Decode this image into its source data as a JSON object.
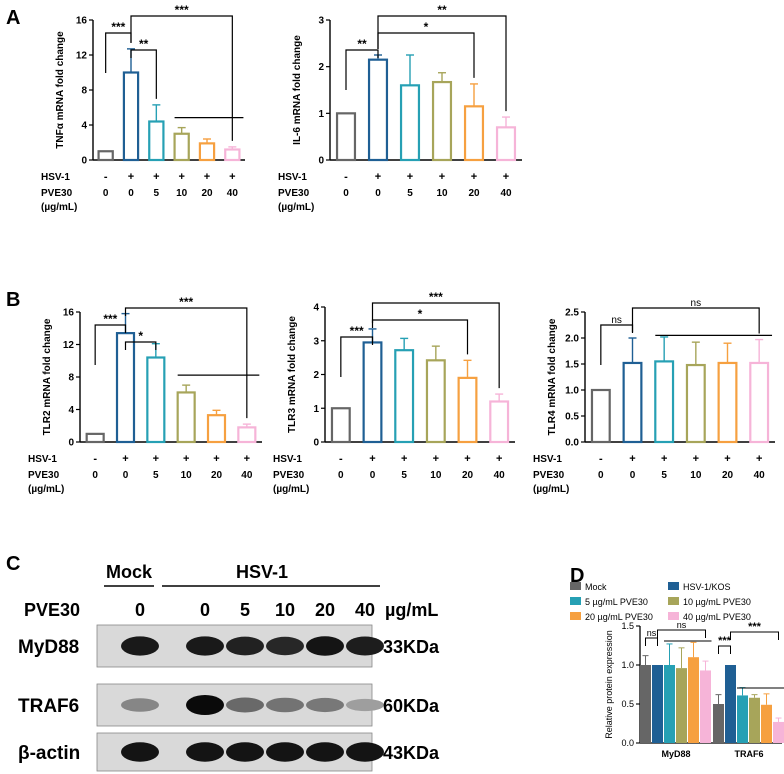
{
  "panel_labels": {
    "a": "A",
    "b": "B",
    "c": "C",
    "d": "D"
  },
  "colors": {
    "gray": "#666666",
    "blue": "#1f5f94",
    "teal": "#26a0b4",
    "olive": "#a7a55a",
    "orange": "#f6a040",
    "pink": "#f6b4d8",
    "black": "#000000"
  },
  "treatment_rows": {
    "hsv_label": "HSV-1",
    "pve_label": "PVE30",
    "unit_label": "(µg/mL)",
    "hsv_marks": [
      "-",
      "+",
      "+",
      "+",
      "+",
      "+"
    ],
    "pve_values": [
      "0",
      "0",
      "5",
      "10",
      "20",
      "40"
    ]
  },
  "chart_data": [
    {
      "id": "tnfa",
      "type": "bar",
      "ylabel": "TNFα mRNA fold change",
      "ylim": [
        0,
        16
      ],
      "yticks": [
        "0",
        "4",
        "8",
        "12",
        "16"
      ],
      "categories": [
        "-/0",
        "+/0",
        "+/5",
        "+/10",
        "+/20",
        "+/40"
      ],
      "values": [
        1.0,
        10.0,
        4.4,
        3.0,
        1.9,
        1.2
      ],
      "errors": [
        0,
        2.7,
        1.9,
        0.7,
        0.5,
        0.3
      ],
      "significance": [
        {
          "from": 0,
          "to": 1,
          "label": "***"
        },
        {
          "from": 1,
          "to": 2,
          "label": "**"
        },
        {
          "from": 1,
          "to": 5,
          "label": "***"
        }
      ]
    },
    {
      "id": "il6",
      "type": "bar",
      "ylabel": "IL-6 mRNA fold change",
      "ylim": [
        0,
        3
      ],
      "yticks": [
        "0",
        "1",
        "2",
        "3"
      ],
      "categories": [
        "-/0",
        "+/0",
        "+/5",
        "+/10",
        "+/20",
        "+/40"
      ],
      "values": [
        1.0,
        2.15,
        1.6,
        1.67,
        1.15,
        0.7
      ],
      "errors": [
        0,
        0.1,
        0.65,
        0.2,
        0.48,
        0.22
      ],
      "significance": [
        {
          "from": 0,
          "to": 1,
          "label": "**"
        },
        {
          "from": 1,
          "to": 4,
          "label": "*"
        },
        {
          "from": 1,
          "to": 5,
          "label": "**"
        }
      ]
    },
    {
      "id": "tlr2",
      "type": "bar",
      "ylabel": "TLR2 mRNA fold change",
      "ylim": [
        0,
        16
      ],
      "yticks": [
        "0",
        "4",
        "8",
        "12",
        "16"
      ],
      "categories": [
        "-/0",
        "+/0",
        "+/5",
        "+/10",
        "+/20",
        "+/40"
      ],
      "values": [
        1.0,
        13.4,
        10.4,
        6.1,
        3.3,
        1.8
      ],
      "errors": [
        0,
        2.4,
        1.7,
        0.9,
        0.6,
        0.4
      ],
      "significance": [
        {
          "from": 0,
          "to": 1,
          "label": "***"
        },
        {
          "from": 1,
          "to": 2,
          "label": "*"
        },
        {
          "from": 1,
          "to": 5,
          "label": "***"
        }
      ]
    },
    {
      "id": "tlr3",
      "type": "bar",
      "ylabel": "TLR3 mRNA fold change",
      "ylim": [
        0,
        4
      ],
      "yticks": [
        "0",
        "1",
        "2",
        "3",
        "4"
      ],
      "categories": [
        "-/0",
        "+/0",
        "+/5",
        "+/10",
        "+/20",
        "+/40"
      ],
      "values": [
        1.0,
        2.95,
        2.72,
        2.42,
        1.9,
        1.2
      ],
      "errors": [
        0,
        0.4,
        0.35,
        0.42,
        0.52,
        0.22
      ],
      "significance": [
        {
          "from": 0,
          "to": 1,
          "label": "***"
        },
        {
          "from": 1,
          "to": 4,
          "label": "*"
        },
        {
          "from": 1,
          "to": 5,
          "label": "***"
        }
      ]
    },
    {
      "id": "tlr4",
      "type": "bar",
      "ylabel": "TLR4 mRNA fold change",
      "ylim": [
        0,
        2.5
      ],
      "yticks": [
        "0.0",
        "0.5",
        "1.0",
        "1.5",
        "2.0",
        "2.5"
      ],
      "categories": [
        "-/0",
        "+/0",
        "+/5",
        "+/10",
        "+/20",
        "+/40"
      ],
      "values": [
        1.0,
        1.52,
        1.55,
        1.48,
        1.52,
        1.52
      ],
      "errors": [
        0,
        0.48,
        0.47,
        0.44,
        0.38,
        0.45
      ],
      "significance": [
        {
          "from": 0,
          "to": 1,
          "label": "ns"
        },
        {
          "from": 1,
          "to": 5,
          "label": "ns"
        }
      ]
    },
    {
      "id": "protein",
      "type": "bar",
      "ylabel": "Relative protein expression",
      "ylim": [
        0,
        1.5
      ],
      "yticks": [
        "0.0",
        "0.5",
        "1.0",
        "1.5"
      ],
      "categories": [
        "MyD88",
        "TRAF6"
      ],
      "series": [
        {
          "name": "Mock",
          "values": [
            1.0,
            0.5
          ],
          "errors": [
            0.12,
            0.12
          ]
        },
        {
          "name": "HSV-1/KOS",
          "values": [
            1.0,
            1.0
          ],
          "errors": [
            0,
            0
          ]
        },
        {
          "name": "5 µg/mL PVE30",
          "values": [
            1.0,
            0.61
          ],
          "errors": [
            0.27,
            0.1
          ]
        },
        {
          "name": "10 µg/mL PVE30",
          "values": [
            0.96,
            0.58
          ],
          "errors": [
            0.26,
            0.04
          ]
        },
        {
          "name": "20 µg/mL PVE30",
          "values": [
            1.1,
            0.49
          ],
          "errors": [
            0.19,
            0.14
          ]
        },
        {
          "name": "40 µg/mL PVE30",
          "values": [
            0.93,
            0.27
          ],
          "errors": [
            0.12,
            0.05
          ]
        }
      ],
      "significance": [
        {
          "group": 0,
          "from": 0,
          "to": 1,
          "label": "ns"
        },
        {
          "group": 0,
          "from": 1,
          "to": 5,
          "label": "ns"
        },
        {
          "group": 1,
          "from": 0,
          "to": 1,
          "label": "***"
        },
        {
          "group": 1,
          "from": 1,
          "to": 5,
          "label": "***"
        }
      ]
    }
  ],
  "western_blot": {
    "group_mock": "Mock",
    "group_hsv": "HSV-1",
    "pve_label": "PVE30",
    "lane_doses": [
      "0",
      "0",
      "5",
      "10",
      "20",
      "40"
    ],
    "dose_unit": "µg/mL",
    "proteins": [
      {
        "name": "MyD88",
        "size": "33KDa",
        "intensities": [
          0.92,
          0.92,
          0.88,
          0.85,
          0.95,
          0.9
        ]
      },
      {
        "name": "TRAF6",
        "size": "60KDa",
        "intensities": [
          0.35,
          1.0,
          0.5,
          0.45,
          0.42,
          0.22
        ]
      },
      {
        "name": "β-actin",
        "size": "43KDa",
        "intensities": [
          0.95,
          0.95,
          0.95,
          0.95,
          0.95,
          0.95
        ]
      }
    ]
  }
}
